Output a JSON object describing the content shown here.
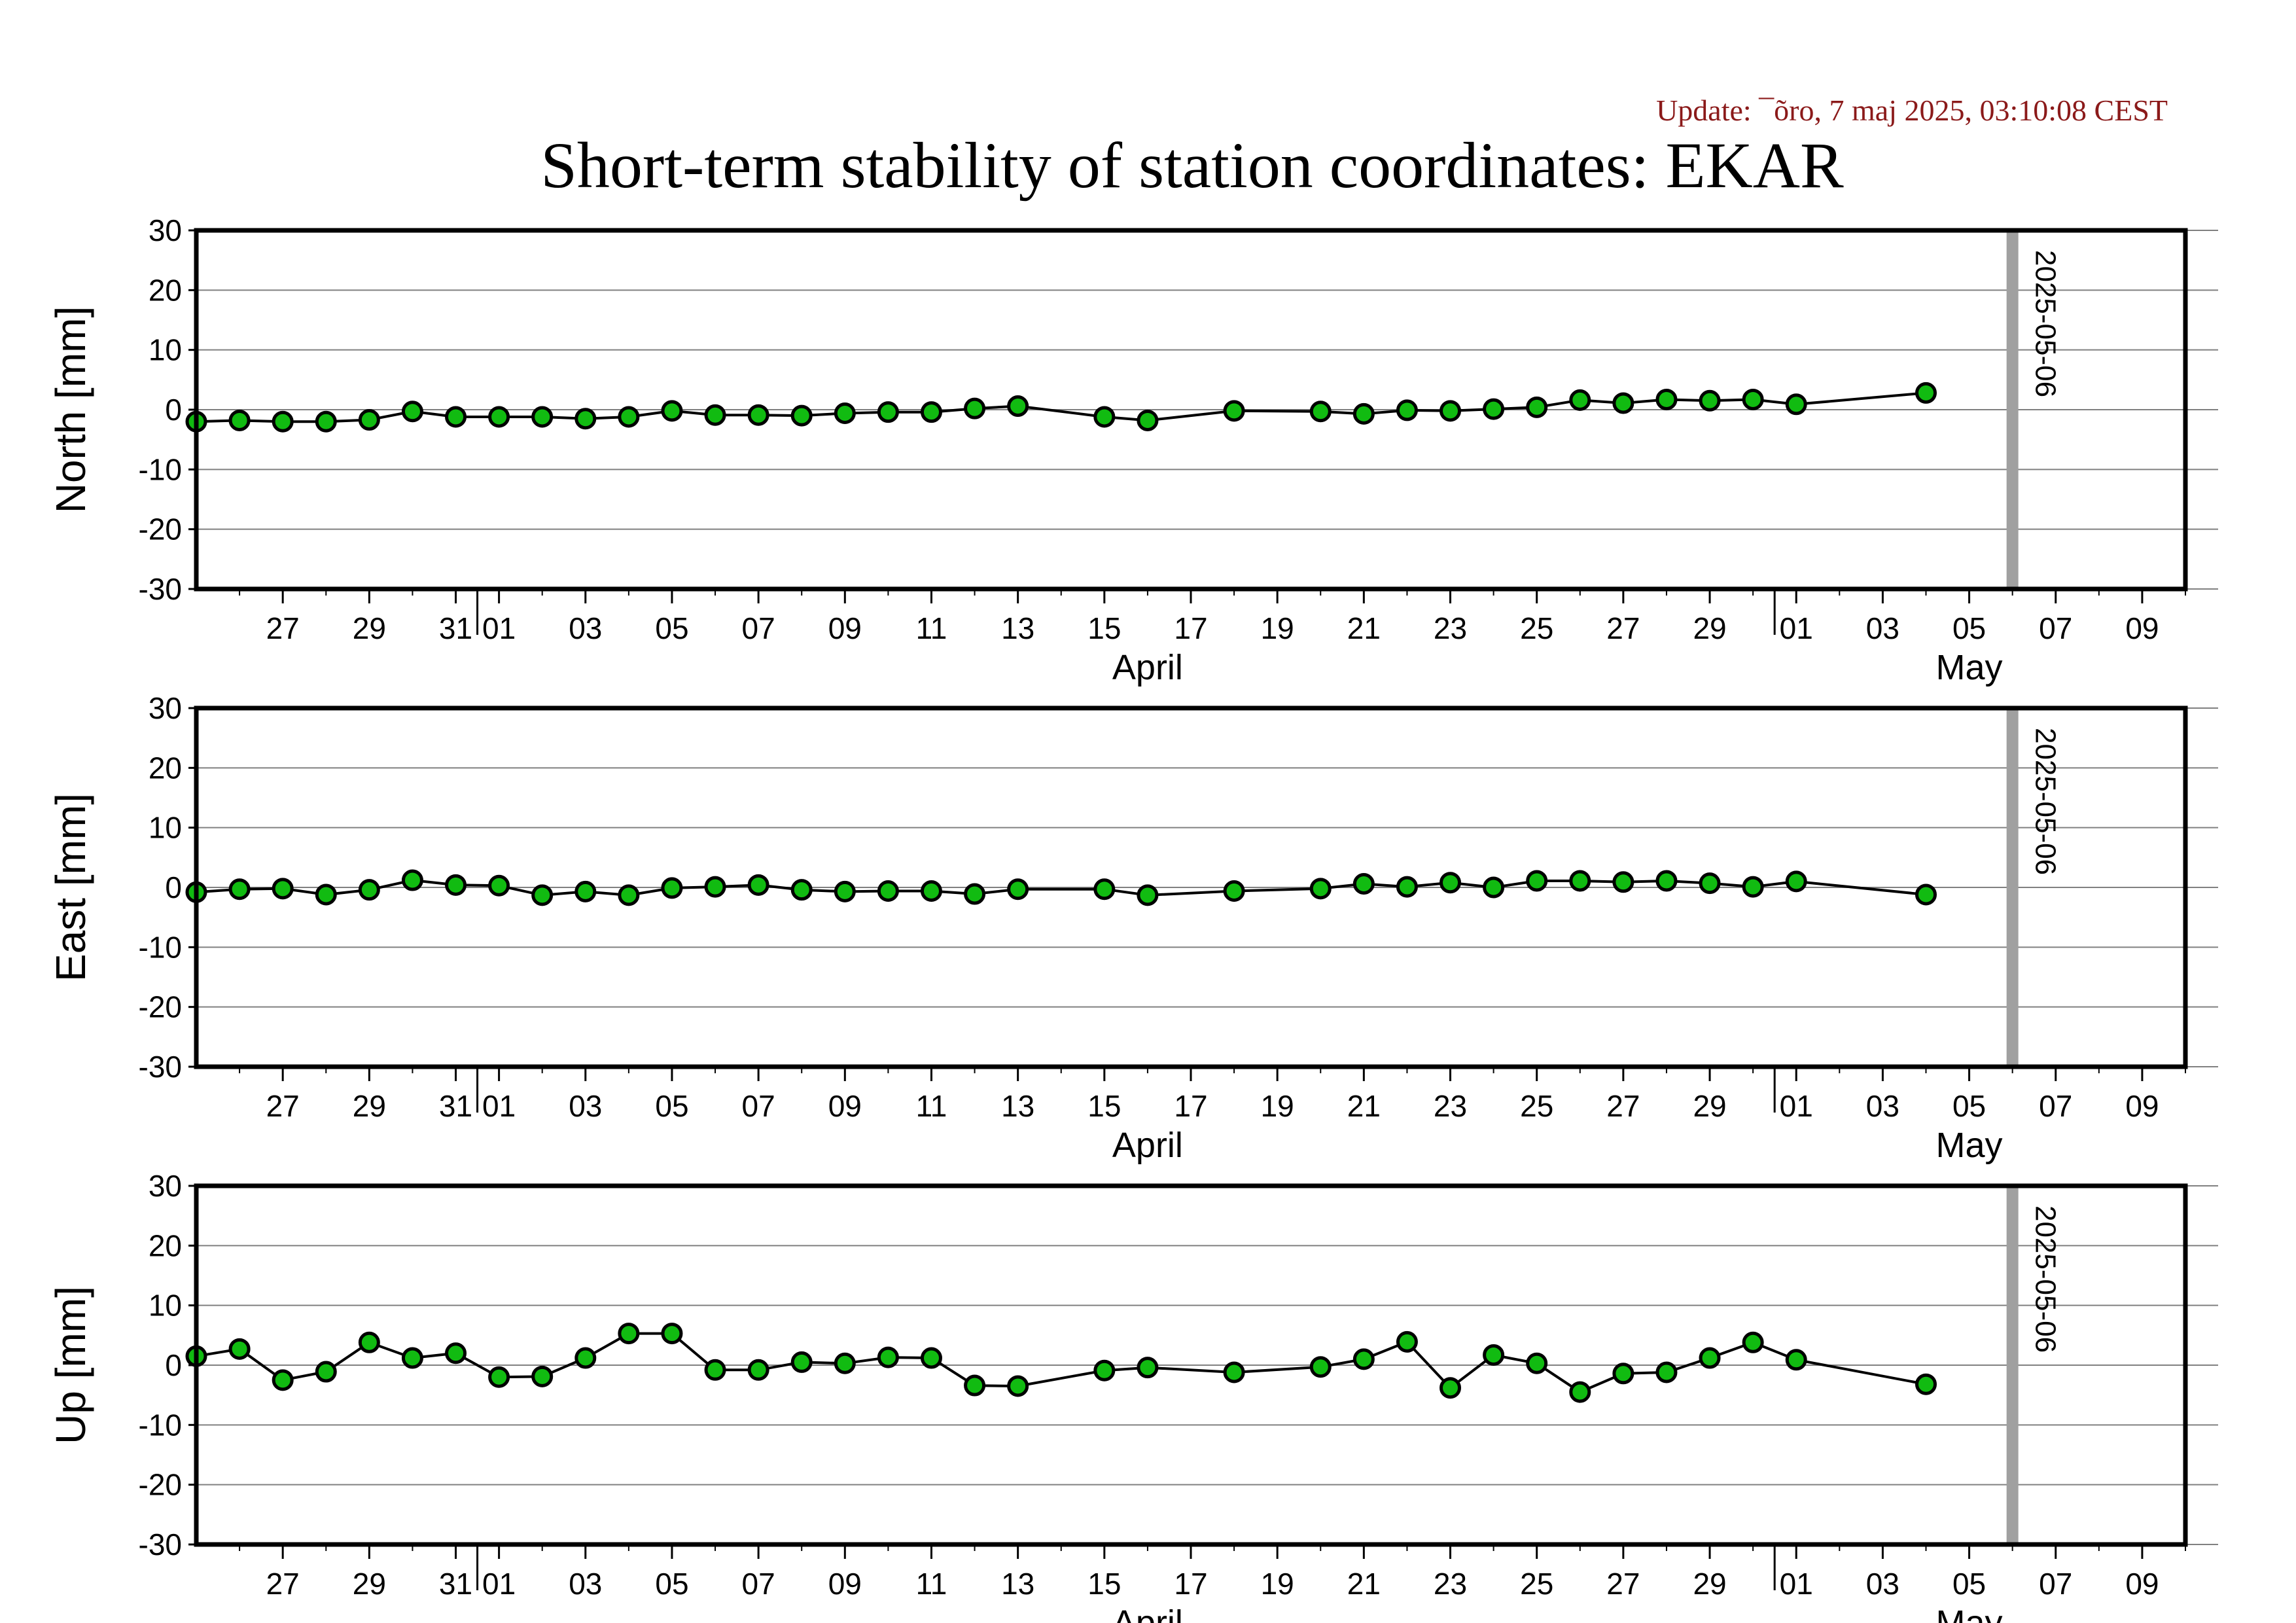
{
  "update_text": "Update: ¯õro, 7 maj 2025, 03:10:08 CEST",
  "colors": {
    "update": "#8b1a1a",
    "marker_fill": "#11bb11",
    "marker_stroke": "#000000",
    "line": "#000000",
    "grid": "#808080",
    "vline": "#a0a0a0"
  },
  "chart_data": {
    "type": "scatter",
    "title": "Short-term stability of station coordinates: EKAR",
    "x_range": [
      "2025-03-25T12:00",
      "2025-05-10T12:00"
    ],
    "ylim": [
      -30,
      30
    ],
    "yticks": [
      30,
      20,
      10,
      0,
      -10,
      -20,
      -30
    ],
    "grid": true,
    "x_tick_labels": [
      "27",
      "29",
      "31",
      "01",
      "03",
      "05",
      "07",
      "09",
      "11",
      "13",
      "15",
      "17",
      "19",
      "21",
      "23",
      "25",
      "27",
      "29",
      "01",
      "03",
      "05",
      "07",
      "09"
    ],
    "x_tick_dates": [
      "2025-03-27",
      "2025-03-29",
      "2025-03-31",
      "2025-04-01",
      "2025-04-03",
      "2025-04-05",
      "2025-04-07",
      "2025-04-09",
      "2025-04-11",
      "2025-04-13",
      "2025-04-15",
      "2025-04-17",
      "2025-04-19",
      "2025-04-21",
      "2025-04-23",
      "2025-04-25",
      "2025-04-27",
      "2025-04-29",
      "2025-05-01",
      "2025-05-03",
      "2025-05-05",
      "2025-05-07",
      "2025-05-09"
    ],
    "month_labels": [
      {
        "label": "April",
        "at": "2025-04-16"
      },
      {
        "label": "May",
        "at": "2025-05-05"
      }
    ],
    "month_boundaries": [
      "2025-04-01",
      "2025-05-01"
    ],
    "marker_line": {
      "date": "2025-05-06",
      "label": "2025-05-06"
    },
    "x": [
      "2025-03-25",
      "2025-03-26",
      "2025-03-27",
      "2025-03-28",
      "2025-03-29",
      "2025-03-30",
      "2025-03-31",
      "2025-04-01",
      "2025-04-02",
      "2025-04-03",
      "2025-04-04",
      "2025-04-05",
      "2025-04-06",
      "2025-04-07",
      "2025-04-08",
      "2025-04-09",
      "2025-04-10",
      "2025-04-11",
      "2025-04-12",
      "2025-04-13",
      "2025-04-15",
      "2025-04-16",
      "2025-04-18",
      "2025-04-20",
      "2025-04-21",
      "2025-04-22",
      "2025-04-23",
      "2025-04-24",
      "2025-04-25",
      "2025-04-26",
      "2025-04-27",
      "2025-04-28",
      "2025-04-29",
      "2025-04-30",
      "2025-05-01",
      "2025-05-04"
    ],
    "panels": [
      {
        "ylabel": "North [mm]",
        "values": [
          -2.0,
          -1.8,
          -2.0,
          -2.0,
          -1.7,
          -0.3,
          -1.2,
          -1.2,
          -1.2,
          -1.5,
          -1.2,
          -0.2,
          -0.9,
          -0.9,
          -1.0,
          -0.6,
          -0.4,
          -0.4,
          0.2,
          0.6,
          -1.2,
          -1.8,
          -0.2,
          -0.3,
          -0.7,
          -0.1,
          -0.2,
          0.1,
          0.4,
          1.6,
          1.1,
          1.7,
          1.5,
          1.7,
          0.9,
          2.8
        ]
      },
      {
        "ylabel": "East [mm]",
        "values": [
          -0.8,
          -0.3,
          -0.2,
          -1.2,
          -0.4,
          1.2,
          0.4,
          0.3,
          -1.3,
          -0.7,
          -1.3,
          -0.1,
          0.1,
          0.4,
          -0.4,
          -0.7,
          -0.6,
          -0.6,
          -1.1,
          -0.3,
          -0.3,
          -1.3,
          -0.6,
          -0.2,
          0.6,
          0.1,
          0.8,
          0.0,
          1.1,
          1.1,
          0.9,
          1.1,
          0.7,
          0.1,
          1.0,
          -1.2
        ]
      },
      {
        "ylabel": "Up [mm]",
        "values": [
          1.5,
          2.7,
          -2.5,
          -1.1,
          3.8,
          1.2,
          2.0,
          -2.0,
          -1.9,
          1.2,
          5.3,
          5.3,
          -0.8,
          -0.8,
          0.5,
          0.3,
          1.3,
          1.2,
          -3.4,
          -3.5,
          -0.9,
          -0.4,
          -1.2,
          -0.3,
          1.0,
          3.9,
          -3.8,
          1.7,
          0.3,
          -4.5,
          -1.4,
          -1.2,
          1.2,
          3.8,
          0.9,
          -3.2
        ]
      }
    ]
  }
}
